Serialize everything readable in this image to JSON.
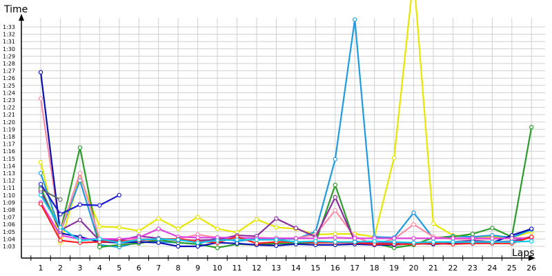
{
  "chart_data": {
    "type": "line",
    "ylabel": "Time",
    "xlabel": "Laps",
    "x": [
      1,
      2,
      3,
      4,
      5,
      6,
      7,
      8,
      9,
      10,
      11,
      12,
      13,
      14,
      15,
      16,
      17,
      18,
      19,
      20,
      21,
      22,
      23,
      24,
      25,
      26
    ],
    "x_tick_labels": [
      "1",
      "2",
      "3",
      "4",
      "5",
      "6",
      "7",
      "8",
      "9",
      "10",
      "11",
      "12",
      "13",
      "14",
      "15",
      "16",
      "17",
      "18",
      "19",
      "20",
      "21",
      "22",
      "23",
      "24",
      "25",
      "26"
    ],
    "y_unit": "seconds",
    "ylim": [
      62,
      95
    ],
    "y_tick_values": [
      63,
      64,
      65,
      66,
      67,
      68,
      69,
      70,
      71,
      72,
      73,
      74,
      75,
      76,
      77,
      78,
      79,
      80,
      81,
      82,
      83,
      84,
      85,
      86,
      87,
      88,
      89,
      90,
      91,
      92,
      93
    ],
    "y_tick_labels": [
      "1:03",
      "1:04",
      "1:05",
      "1:06",
      "1:07",
      "1:08",
      "1:09",
      "1:10",
      "1:11",
      "1:12",
      "1:13",
      "1:14",
      "1:15",
      "1:16",
      "1:17",
      "1:18",
      "1:19",
      "1:20",
      "1:21",
      "1:22",
      "1:23",
      "1:24",
      "1:25",
      "1:26",
      "1:27",
      "1:28",
      "1:29",
      "1:30",
      "1:31",
      "1:32",
      "1:33"
    ],
    "grid": true,
    "series": [
      {
        "color": "#e6e600",
        "values": [
          74.5,
          63.5,
          72.5,
          65.7,
          65.6,
          65.1,
          66.8,
          65.4,
          67,
          65.4,
          64.9,
          66.7,
          65.6,
          65.4,
          64.6,
          64.7,
          64.7,
          64.3,
          75.1,
          100,
          66.1,
          64.5,
          64.3,
          64.3,
          64.2,
          65
        ]
      },
      {
        "color": "#1e9be0",
        "values": [
          73,
          65,
          72,
          63.2,
          62.9,
          63.6,
          63.6,
          63.5,
          63.3,
          64.2,
          63.7,
          64,
          64,
          64,
          65,
          74.9,
          94,
          64.3,
          64.2,
          67.6,
          64.1,
          64.4,
          64.3,
          64.5,
          64.2,
          65.3
        ]
      },
      {
        "color": "#2a9c2a",
        "values": [
          71,
          65,
          76.5,
          62.9,
          63.2,
          63.4,
          63.9,
          63.5,
          63.3,
          62.8,
          63.3,
          63.2,
          63.4,
          63.4,
          63.5,
          71.4,
          63.5,
          63.4,
          62.8,
          63.2,
          64.2,
          64.3,
          64.7,
          65.5,
          64.3,
          79.3
        ]
      },
      {
        "color": "#ff8aa8",
        "values": [
          83.2,
          65,
          73,
          64,
          64,
          64,
          64,
          64,
          64.6,
          64.2,
          64.1,
          64.2,
          64.1,
          64.1,
          64.6,
          67.9,
          64.3,
          63.3,
          64,
          66,
          64.3,
          64,
          64,
          64,
          64.1,
          64.2
        ]
      },
      {
        "color": "#0a10b0",
        "values": [
          86.8,
          64.8,
          64.3,
          63.6,
          63.5,
          63.6,
          63.5,
          63,
          63,
          63.5,
          63.4,
          63.2,
          63.1,
          63.3,
          63.2,
          63.2,
          63.3,
          63.2,
          63.2,
          63.4,
          63.3,
          63.4,
          63.4,
          63.5,
          64.5,
          65.4
        ]
      },
      {
        "color": "#1a1ad0",
        "values": [
          71.5,
          67.4,
          68.7,
          68.6,
          70,
          null,
          null,
          null,
          null,
          null,
          null,
          null,
          null,
          null,
          null,
          null,
          null,
          null,
          null,
          null,
          null,
          null,
          null,
          null,
          null,
          null
        ]
      },
      {
        "color": "#8a2e9e",
        "values": [
          70.5,
          65.2,
          66.6,
          63.8,
          63.8,
          64.4,
          64.1,
          63.8,
          63.8,
          63.9,
          64.5,
          64.4,
          66.8,
          65.5,
          64.3,
          69.7,
          63.7,
          63.4,
          63.5,
          63.5,
          63.5,
          63.6,
          63.8,
          63.6,
          63.7,
          64.3
        ]
      },
      {
        "color": "#e040e0",
        "values": [
          69,
          64.5,
          64,
          64,
          64,
          64.2,
          65.4,
          64.3,
          64.2,
          64.2,
          64.2,
          64.1,
          64.1,
          64.1,
          64.1,
          64.2,
          64.1,
          64.1,
          64.1,
          64.1,
          64.1,
          64.1,
          64.1,
          64.1,
          64.1,
          64.1
        ]
      },
      {
        "color": "#ff2020",
        "values": [
          68.8,
          63.8,
          63.5,
          63.6,
          63.7,
          63.8,
          64,
          64,
          63.7,
          63.5,
          64.3,
          63.4,
          63.6,
          63.6,
          63.5,
          63.5,
          63.5,
          63.3,
          63.3,
          63.3,
          63.4,
          63.3,
          63.4,
          63.4,
          63.4,
          64.3
        ]
      },
      {
        "color": "#6a6a6a",
        "values": [
          70.8,
          69.4,
          null,
          null,
          null,
          null,
          null,
          null,
          null,
          null,
          null,
          null,
          null,
          null,
          null,
          null,
          null,
          null,
          null,
          null,
          null,
          null,
          null,
          null,
          null,
          null
        ]
      },
      {
        "color": "#10c8e8",
        "values": [
          70,
          65.6,
          63.8,
          64,
          63.5,
          63.9,
          64,
          63.9,
          63.5,
          63.8,
          63.9,
          63.9,
          63.9,
          63.6,
          63.7,
          63.6,
          63.6,
          63.7,
          63.6,
          63.5,
          63.6,
          63.6,
          63.6,
          63.6,
          63.6,
          63.7
        ]
      }
    ]
  }
}
